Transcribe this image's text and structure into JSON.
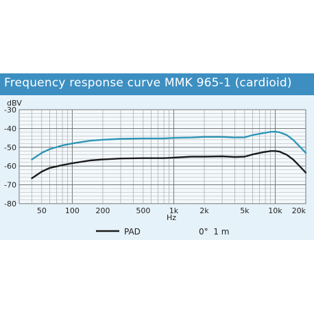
{
  "title": "Frequency response curve MMK 965-1 (cardioid)",
  "colors": {
    "title_band": "#3d8fc2",
    "panel": "#e6f2f9",
    "curve_main": "#2e96b8",
    "curve_pad": "#1a1a1a"
  },
  "legend": {
    "pad_label": "PAD",
    "condition_label": "0°  1 m"
  },
  "chart_data": {
    "type": "line",
    "title": "Frequency response curve MMK 965-1 (cardioid)",
    "xlabel": "Hz",
    "ylabel": "dBV",
    "x_scale": "log",
    "xlim": [
      30,
      20000
    ],
    "ylim": [
      -80,
      -30
    ],
    "grid": true,
    "x_ticks": [
      {
        "value": 50,
        "label": "50"
      },
      {
        "value": 100,
        "label": "100"
      },
      {
        "value": 200,
        "label": "200"
      },
      {
        "value": 500,
        "label": "500"
      },
      {
        "value": 1000,
        "label": "1k"
      },
      {
        "value": 2000,
        "label": "2k"
      },
      {
        "value": 5000,
        "label": "5k"
      },
      {
        "value": 10000,
        "label": "10k"
      },
      {
        "value": 20000,
        "label": "20k"
      }
    ],
    "y_ticks": [
      {
        "value": -30,
        "label": "-30"
      },
      {
        "value": -40,
        "label": "-40"
      },
      {
        "value": -50,
        "label": "-50"
      },
      {
        "value": -60,
        "label": "-60"
      },
      {
        "value": -70,
        "label": "-70"
      },
      {
        "value": -80,
        "label": "-80"
      }
    ],
    "series": [
      {
        "key": "main",
        "points": [
          [
            40,
            -56.5
          ],
          [
            50,
            -53
          ],
          [
            60,
            -51
          ],
          [
            80,
            -49
          ],
          [
            100,
            -48
          ],
          [
            150,
            -46.5
          ],
          [
            200,
            -46
          ],
          [
            300,
            -45.5
          ],
          [
            500,
            -45.3
          ],
          [
            800,
            -45.3
          ],
          [
            1000,
            -45
          ],
          [
            1500,
            -44.8
          ],
          [
            2000,
            -44.5
          ],
          [
            3000,
            -44.5
          ],
          [
            4000,
            -44.8
          ],
          [
            5000,
            -44.7
          ],
          [
            6000,
            -43.5
          ],
          [
            7500,
            -42.5
          ],
          [
            9000,
            -41.8
          ],
          [
            10000,
            -41.7
          ],
          [
            11000,
            -42
          ],
          [
            13000,
            -43.5
          ],
          [
            15000,
            -46
          ],
          [
            17000,
            -49
          ],
          [
            20000,
            -53
          ]
        ]
      },
      {
        "key": "pad",
        "name": "PAD",
        "points": [
          [
            40,
            -66.5
          ],
          [
            50,
            -63
          ],
          [
            60,
            -61
          ],
          [
            80,
            -59.5
          ],
          [
            100,
            -58.5
          ],
          [
            150,
            -57
          ],
          [
            200,
            -56.5
          ],
          [
            300,
            -56
          ],
          [
            500,
            -55.8
          ],
          [
            800,
            -55.8
          ],
          [
            1000,
            -55.5
          ],
          [
            1500,
            -55
          ],
          [
            2000,
            -55
          ],
          [
            3000,
            -54.8
          ],
          [
            4000,
            -55.2
          ],
          [
            5000,
            -55
          ],
          [
            6000,
            -53.8
          ],
          [
            7500,
            -52.7
          ],
          [
            9000,
            -52
          ],
          [
            10000,
            -52
          ],
          [
            11000,
            -52.3
          ],
          [
            13000,
            -54
          ],
          [
            15000,
            -56.5
          ],
          [
            17000,
            -59.5
          ],
          [
            20000,
            -63.5
          ]
        ]
      }
    ]
  }
}
